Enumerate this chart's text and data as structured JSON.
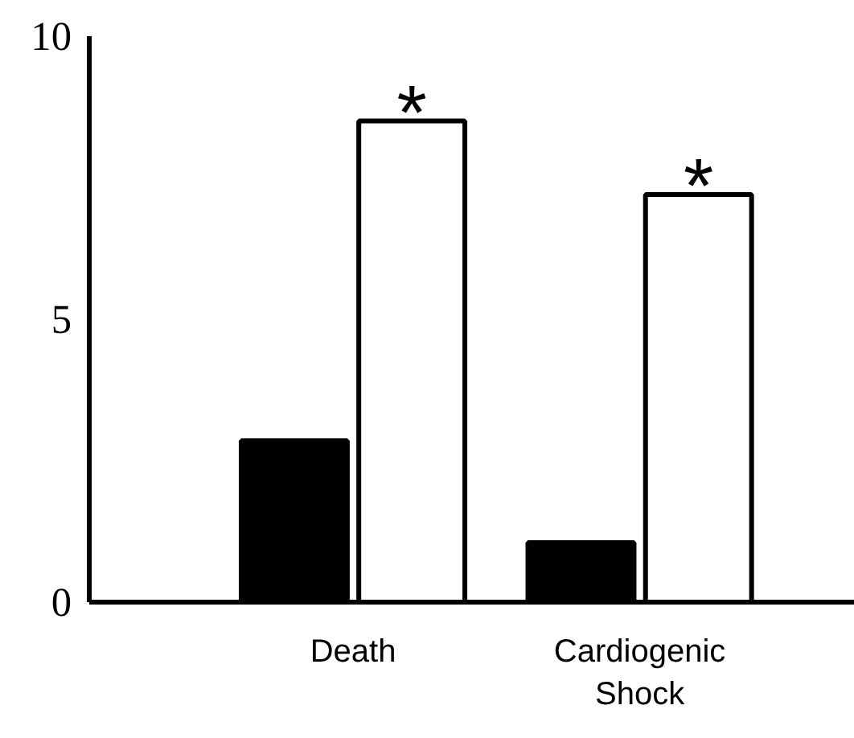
{
  "chart_data": {
    "type": "bar",
    "categories": [
      "Death",
      "Cardiogenic Shock"
    ],
    "series": [
      {
        "color": "#000000",
        "values": [
          2.85,
          1.05
        ]
      },
      {
        "color": "#ffffff",
        "values": [
          8.5,
          7.2
        ]
      }
    ],
    "ylim": [
      0,
      10
    ],
    "yticks": [
      0,
      5,
      10
    ],
    "grid": false,
    "annotations": [
      {
        "text": "*",
        "x": "Death",
        "y": 8.5
      },
      {
        "text": "*",
        "x": "Cardiogenic Shock",
        "y": 7.2
      }
    ]
  }
}
